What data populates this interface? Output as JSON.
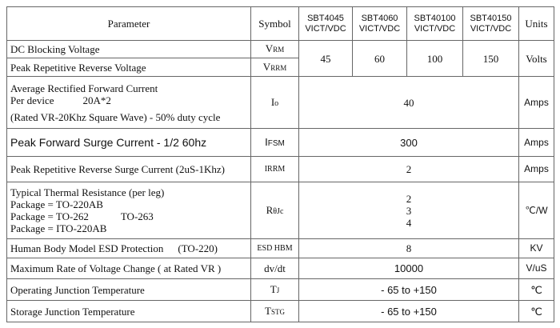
{
  "header": {
    "parameter": "Parameter",
    "symbol": "Symbol",
    "devices": [
      {
        "name": "SBT4045",
        "package": "VICT/VDC"
      },
      {
        "name": "SBT4060",
        "package": "VICT/VDC"
      },
      {
        "name": "SBT40100",
        "package": "VICT/VDC"
      },
      {
        "name": "SBT40150",
        "package": "VICT/VDC"
      }
    ],
    "units": "Units"
  },
  "rows": [
    {
      "parameter": "DC Blocking Voltage",
      "symbol": [
        "V",
        "RM"
      ]
    },
    {
      "parameter": "Peak Repetitive Reverse Voltage",
      "symbol": [
        "V",
        "RRM"
      ],
      "values": [
        45,
        60,
        100,
        150
      ],
      "units": "Volts"
    },
    {
      "parameter": [
        "Average Rectified Forward Current",
        "Per device",
        "20A*2",
        "(Rated VR-20Khz Square Wave) - 50% duty cycle"
      ],
      "symbol": [
        "I",
        "o"
      ],
      "value": 40,
      "units": "Amps"
    },
    {
      "parameter": "Peak Forward Surge Current - 1/2 60hz",
      "symbol": [
        "I",
        "FSM"
      ],
      "value": 300,
      "units": "Amps"
    },
    {
      "parameter": "Peak Repetitive Reverse Surge Current (2uS-1Khz)",
      "symbol": "IRRM",
      "value": 2,
      "units": "Amps"
    },
    {
      "parameter": [
        "Typical Thermal Resistance (per leg)",
        "Package = TO-220AB",
        "Package = TO-262",
        "TO-263",
        "Package = ITO-220AB"
      ],
      "symbol": [
        "R",
        "θJc"
      ],
      "values": [
        2,
        3,
        4
      ],
      "units": "℃/W"
    },
    {
      "parameter": [
        "Human Body Model ESD Protection",
        "(TO-220)"
      ],
      "symbol": "ESD HBM",
      "value": 8,
      "units": "KV"
    },
    {
      "parameter": "Maximum Rate of Voltage Change ( at Rated VR )",
      "symbol": "dv/dt",
      "value": 10000,
      "units": "V/uS"
    },
    {
      "parameter": "Operating Junction Temperature",
      "symbol": [
        "T",
        "J"
      ],
      "value": "- 65 to +150",
      "units": "℃"
    },
    {
      "parameter": "Storage Junction Temperature",
      "symbol": [
        "T",
        "STG"
      ],
      "value": "- 65 to +150",
      "units": "℃"
    }
  ]
}
